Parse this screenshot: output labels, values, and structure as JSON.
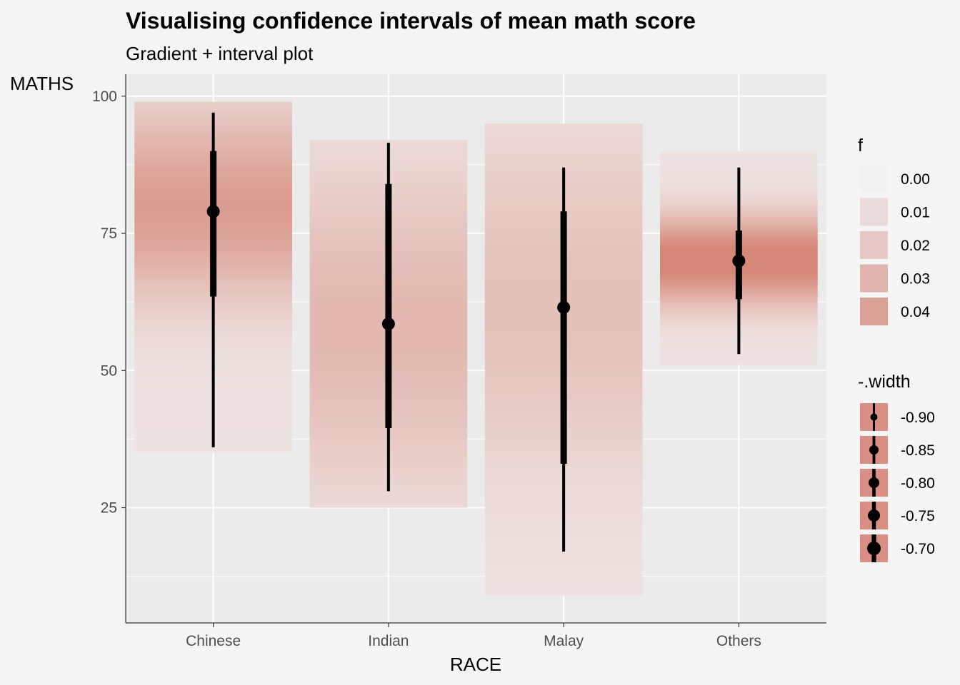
{
  "chart_data": {
    "type": "interval",
    "title": "Visualising confidence intervals of mean math score",
    "subtitle": "Gradient + interval plot",
    "xlabel": "RACE",
    "ylabel": "MATHS",
    "categories": [
      "Chinese",
      "Indian",
      "Malay",
      "Others"
    ],
    "yticks": [
      25,
      50,
      75,
      100
    ],
    "ylim": [
      4,
      104
    ],
    "grid": true,
    "series": [
      {
        "category": "Chinese",
        "point": 79,
        "inner": [
          63.5,
          90
        ],
        "outer": [
          36,
          97
        ],
        "band": [
          35,
          99
        ],
        "peak_density": 0.03,
        "peak_at": 80
      },
      {
        "category": "Indian",
        "point": 58.5,
        "inner": [
          39.5,
          84
        ],
        "outer": [
          28,
          91.5
        ],
        "band": [
          25,
          92
        ],
        "peak_density": 0.018,
        "peak_at": 58
      },
      {
        "category": "Malay",
        "point": 61.5,
        "inner": [
          33,
          79
        ],
        "outer": [
          17,
          87
        ],
        "band": [
          9,
          95
        ],
        "peak_density": 0.015,
        "peak_at": 62
      },
      {
        "category": "Others",
        "point": 70,
        "inner": [
          63,
          75.5
        ],
        "outer": [
          53,
          87
        ],
        "band": [
          51,
          90
        ],
        "peak_density": 0.042,
        "peak_at": 70
      }
    ],
    "legend_fill": {
      "title": "f",
      "placement": "right",
      "entries": [
        {
          "label": "0.00",
          "color": "#f2f2f2"
        },
        {
          "label": "0.01",
          "color": "#ebdada"
        },
        {
          "label": "0.02",
          "color": "#e6c7c3"
        },
        {
          "label": "0.03",
          "color": "#e0b4ad"
        },
        {
          "label": "0.04",
          "color": "#d9a095"
        }
      ]
    },
    "legend_width": {
      "title": "-.width",
      "placement": "right",
      "key_color": "#d98f84",
      "entries": [
        {
          "label": "-0.90",
          "point_size": 5
        },
        {
          "label": "-0.85",
          "point_size": 6.5
        },
        {
          "label": "-0.80",
          "point_size": 7.5
        },
        {
          "label": "-0.75",
          "point_size": 8.5
        },
        {
          "label": "-0.70",
          "point_size": 9.5
        }
      ]
    }
  }
}
